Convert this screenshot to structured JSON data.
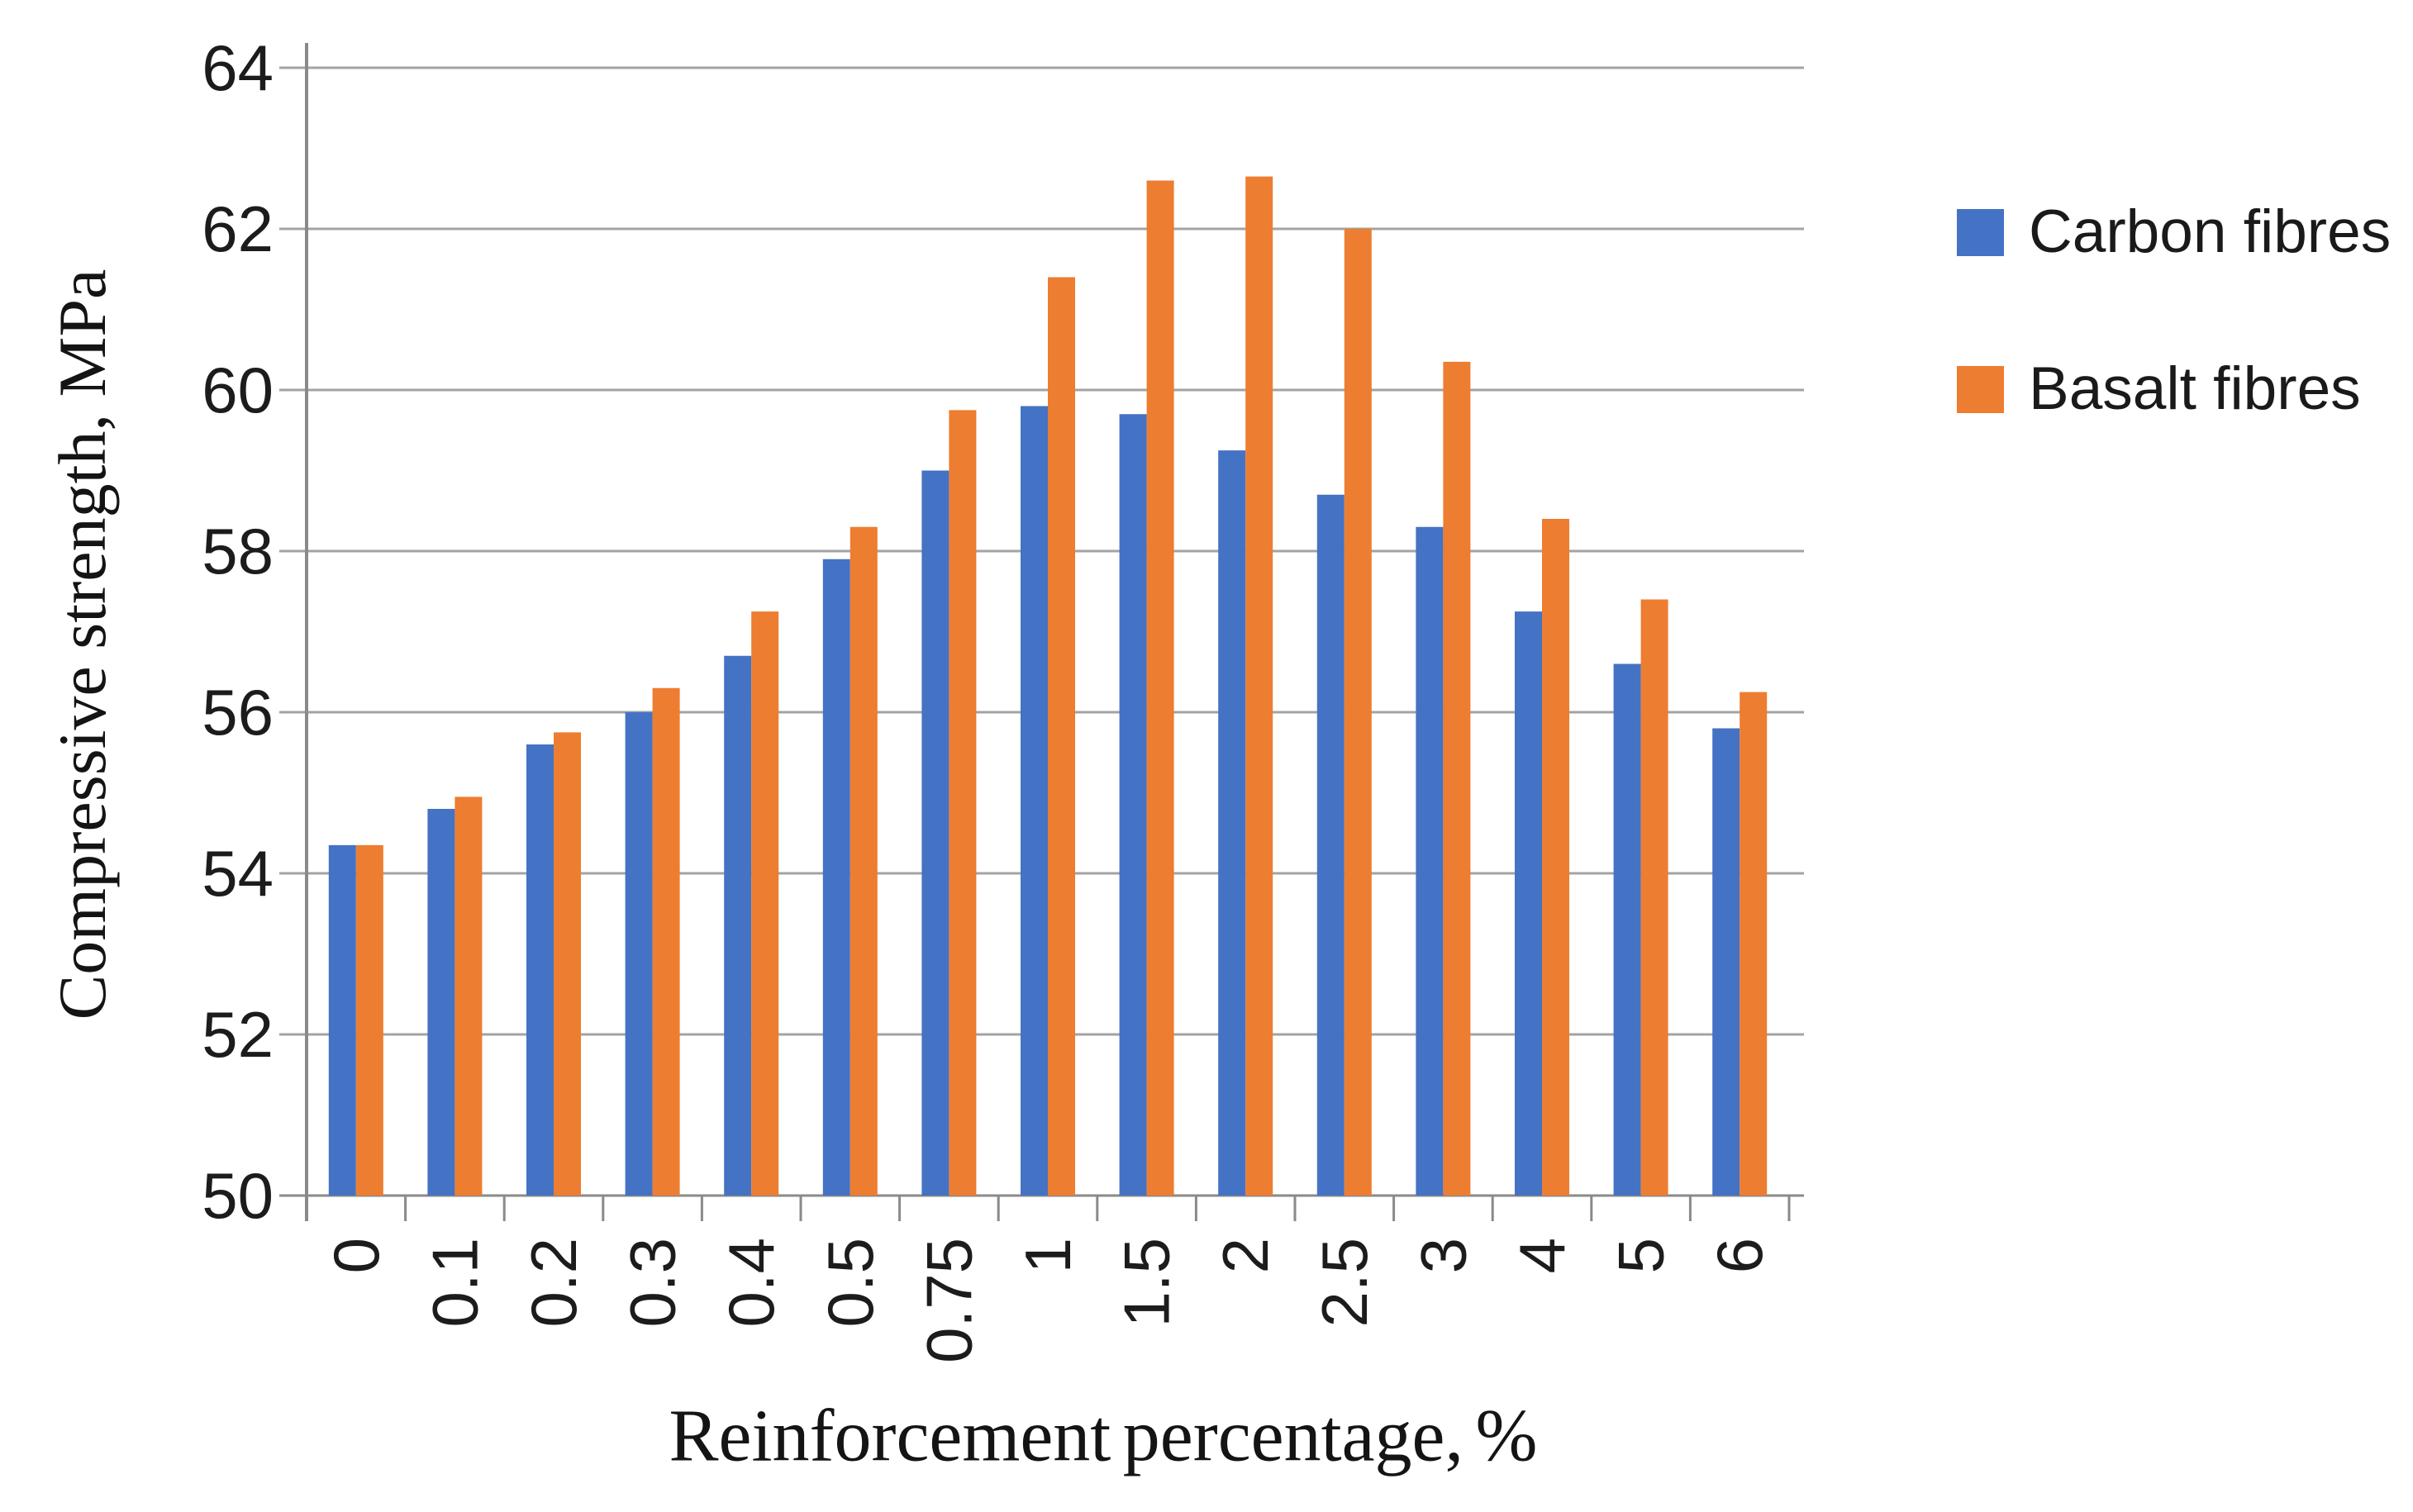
{
  "chart_data": {
    "type": "bar",
    "title": "",
    "categories": [
      "0",
      "0.1",
      "0.2",
      "0.3",
      "0.4",
      "0.5",
      "0.75",
      "1",
      "1.5",
      "2",
      "2.5",
      "3",
      "4",
      "5",
      "6"
    ],
    "series": [
      {
        "name": "Carbon fibres",
        "color": "#4472C4",
        "values": [
          54.35,
          54.8,
          55.6,
          56.0,
          56.7,
          57.9,
          59.0,
          59.8,
          59.7,
          59.25,
          58.7,
          58.3,
          57.25,
          56.6,
          55.8
        ]
      },
      {
        "name": "Basalt fibres",
        "color": "#ED7D31",
        "values": [
          54.35,
          54.95,
          55.75,
          56.3,
          57.25,
          58.3,
          59.75,
          61.4,
          62.6,
          62.65,
          62.0,
          60.35,
          58.4,
          57.4,
          56.25
        ]
      }
    ],
    "xlabel": "Reinforcement percentage, %",
    "ylabel": "Compressive strength, MPa",
    "ylim": [
      50,
      64
    ],
    "ytick_step": 2,
    "y_tick_labels": [
      "64",
      "62",
      "60",
      "58",
      "56",
      "54",
      "52",
      "50"
    ],
    "grid": true,
    "legend_position": "right-top",
    "x_label_rotation": -90
  },
  "legend": {
    "items": [
      {
        "label": "Carbon fibres",
        "color": "#4472C4"
      },
      {
        "label": "Basalt fibres",
        "color": "#ED7D31"
      }
    ]
  },
  "titles": {
    "y_axis": "Compressive strength, MPa",
    "x_axis": "Reinforcement percentage, %"
  },
  "colors": {
    "carbon": "#4472C4",
    "basalt": "#ED7D31",
    "gridline": "#a3a3a3",
    "axis": "#8a8a8a",
    "text": "#1c1c1c",
    "background": "#ffffff"
  }
}
